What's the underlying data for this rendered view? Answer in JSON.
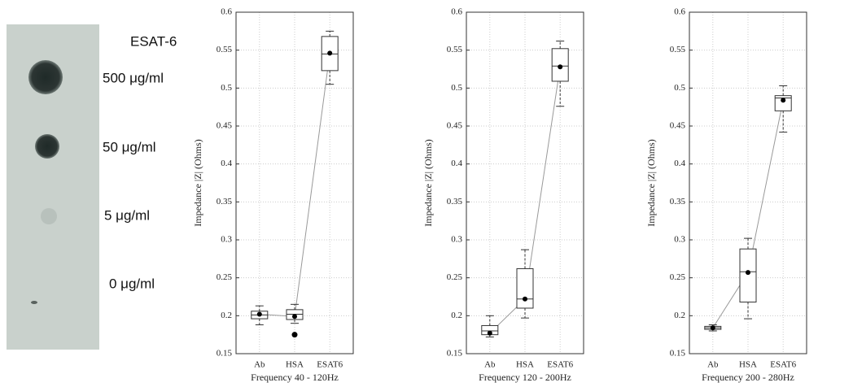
{
  "blot": {
    "title": "ESAT-6",
    "labels": [
      "500 μg/ml",
      "50 μg/ml",
      "5 μg/ml",
      "0 μg/ml"
    ]
  },
  "chart_data": [
    {
      "type": "box",
      "y_label": "Impedance |Z| (Ohms)",
      "x_label": "Frequency 40 - 120Hz",
      "categories": [
        "Ab",
        "HSA",
        "ESAT6"
      ],
      "whisker_low": [
        0.188,
        0.19,
        0.505
      ],
      "q1": [
        0.196,
        0.195,
        0.523
      ],
      "median": [
        0.201,
        0.202,
        0.545
      ],
      "q3": [
        0.206,
        0.208,
        0.568
      ],
      "whisker_high": [
        0.213,
        0.215,
        0.575
      ],
      "mean": [
        0.202,
        0.199,
        0.546
      ],
      "outliers": [
        [],
        [
          0.175
        ],
        []
      ],
      "ylim": [
        0.15,
        0.6
      ],
      "yticks": [
        0.15,
        0.2,
        0.25,
        0.3,
        0.35,
        0.4,
        0.45,
        0.5,
        0.55,
        0.6
      ],
      "grid": true
    },
    {
      "type": "box",
      "y_label": "Impedance |Z| (Ohms)",
      "x_label": "Frequency 120 - 200Hz",
      "categories": [
        "Ab",
        "HSA",
        "ESAT6"
      ],
      "whisker_low": [
        0.172,
        0.197,
        0.476
      ],
      "q1": [
        0.175,
        0.21,
        0.509
      ],
      "median": [
        0.18,
        0.222,
        0.529
      ],
      "q3": [
        0.187,
        0.262,
        0.552
      ],
      "whisker_high": [
        0.2,
        0.287,
        0.562
      ],
      "mean": [
        0.177,
        0.222,
        0.528
      ],
      "outliers": [
        [],
        [],
        []
      ],
      "ylim": [
        0.15,
        0.6
      ],
      "yticks": [
        0.15,
        0.2,
        0.25,
        0.3,
        0.35,
        0.4,
        0.45,
        0.5,
        0.55,
        0.6
      ],
      "grid": true
    },
    {
      "type": "box",
      "y_label": "Impedance |Z| (Ohms)",
      "x_label": "Frequency 200 - 280Hz",
      "categories": [
        "Ab",
        "HSA",
        "ESAT6"
      ],
      "whisker_low": [
        0.18,
        0.196,
        0.442
      ],
      "q1": [
        0.182,
        0.218,
        0.47
      ],
      "median": [
        0.184,
        0.258,
        0.487
      ],
      "q3": [
        0.186,
        0.288,
        0.49
      ],
      "whisker_high": [
        0.188,
        0.302,
        0.503
      ],
      "mean": [
        0.184,
        0.257,
        0.484
      ],
      "outliers": [
        [],
        [],
        []
      ],
      "ylim": [
        0.15,
        0.6
      ],
      "yticks": [
        0.15,
        0.2,
        0.25,
        0.3,
        0.35,
        0.4,
        0.45,
        0.5,
        0.55,
        0.6
      ],
      "grid": true
    }
  ]
}
